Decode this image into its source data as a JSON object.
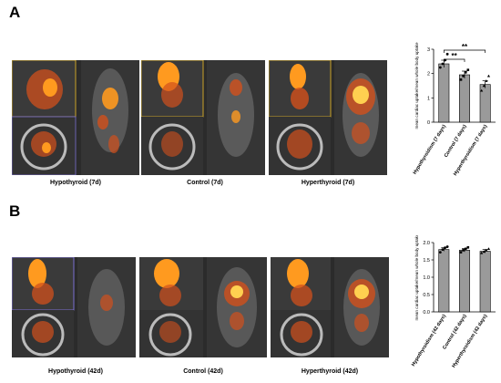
{
  "figure": {
    "panel_a_letter": "A",
    "panel_b_letter": "B",
    "panel_a_captions": [
      "Hypothyroid (7d)",
      "Control (7d)",
      "Hyperthyroid (7d)"
    ],
    "panel_b_captions": [
      "Hypothyroid (42d)",
      "Control (42d)",
      "Hyperthyroid (42d)"
    ]
  },
  "colors": {
    "bar": "#9a9a9a",
    "scan_bg": "#2b2b2b",
    "hot": "#ff9a1f",
    "warm": "#d2501c"
  },
  "chart_data": [
    {
      "type": "bar",
      "title": "",
      "xlabel": "",
      "ylabel": "mean cardiac uptake/mean whole body uptake",
      "categories": [
        "Hypothyroidism (7 days)",
        "Control (7 days)",
        "Hyperthyroidism (7 days)"
      ],
      "values": [
        2.4,
        1.95,
        1.55
      ],
      "errors": [
        0.15,
        0.15,
        0.15
      ],
      "ylim": [
        0,
        3
      ],
      "yticks": [
        "0",
        "1",
        "2",
        "3"
      ],
      "significance": [
        "**",
        "**"
      ],
      "points": [
        [
          2.25,
          2.4,
          2.55,
          2.8
        ],
        [
          1.75,
          1.9,
          2.05,
          2.15
        ],
        [
          1.3,
          1.5,
          1.7,
          1.9
        ]
      ]
    },
    {
      "type": "bar",
      "title": "",
      "xlabel": "",
      "ylabel": "mean cardiac uptake/mean whole body uptake",
      "categories": [
        "Hypothyroidism (42 days)",
        "Control (42 days)",
        "Hyperthyroidism (42 days)"
      ],
      "values": [
        1.8,
        1.78,
        1.75
      ],
      "errors": [
        0.05,
        0.05,
        0.05
      ],
      "ylim": [
        0,
        2.0
      ],
      "yticks": [
        "0.0",
        "0.5",
        "1.0",
        "1.5",
        "2.0"
      ],
      "significance": [],
      "points": [
        [
          1.72,
          1.8,
          1.85,
          1.88
        ],
        [
          1.72,
          1.78,
          1.82,
          1.86
        ],
        [
          1.7,
          1.74,
          1.78,
          1.82
        ]
      ]
    }
  ]
}
